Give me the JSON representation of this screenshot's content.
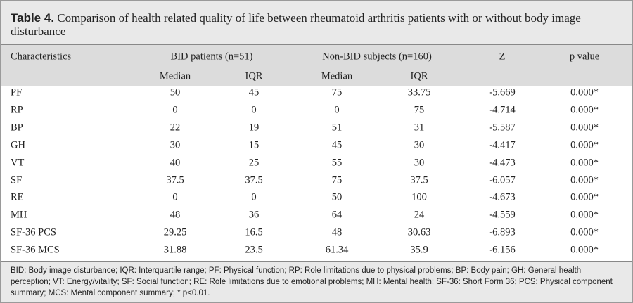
{
  "title": {
    "label": "Table 4.",
    "text": "Comparison of health related quality of life between rheumatoid arthritis patients with or without body image disturbance"
  },
  "table": {
    "header": {
      "characteristics": "Characteristics",
      "groups": [
        {
          "name": "BID patients (n=51)",
          "subcolumns": [
            "Median",
            "IQR"
          ]
        },
        {
          "name": "Non-BID subjects (n=160)",
          "subcolumns": [
            "Median",
            "IQR"
          ]
        }
      ],
      "z": "Z",
      "p": "p value"
    },
    "rows": [
      [
        "PF",
        "50",
        "45",
        "75",
        "33.75",
        "-5.669",
        "0.000*"
      ],
      [
        "RP",
        "0",
        "0",
        "0",
        "75",
        "-4.714",
        "0.000*"
      ],
      [
        "BP",
        "22",
        "19",
        "51",
        "31",
        "-5.587",
        "0.000*"
      ],
      [
        "GH",
        "30",
        "15",
        "45",
        "30",
        "-4.417",
        "0.000*"
      ],
      [
        "VT",
        "40",
        "25",
        "55",
        "30",
        "-4.473",
        "0.000*"
      ],
      [
        "SF",
        "37.5",
        "37.5",
        "75",
        "37.5",
        "-6.057",
        "0.000*"
      ],
      [
        "RE",
        "0",
        "0",
        "50",
        "100",
        "-4.673",
        "0.000*"
      ],
      [
        "MH",
        "48",
        "36",
        "64",
        "24",
        "-4.559",
        "0.000*"
      ],
      [
        "SF-36 PCS",
        "29.25",
        "16.5",
        "48",
        "30.63",
        "-6.893",
        "0.000*"
      ],
      [
        "SF-36 MCS",
        "31.88",
        "23.5",
        "61.34",
        "35.9",
        "-6.156",
        "0.000*"
      ]
    ]
  },
  "footnote": "BID: Body image disturbance; IQR: Interquartile range; PF: Physical function; RP: Role limitations due to physical problems; BP: Body pain; GH: General health perception; VT: Energy/vitality; SF: Social function; RE: Role limitations due to emotional problems; MH: Mental health; SF-36: Short Form 36; PCS: Physical component summary; MCS: Mental component summary; * p<0.01."
}
